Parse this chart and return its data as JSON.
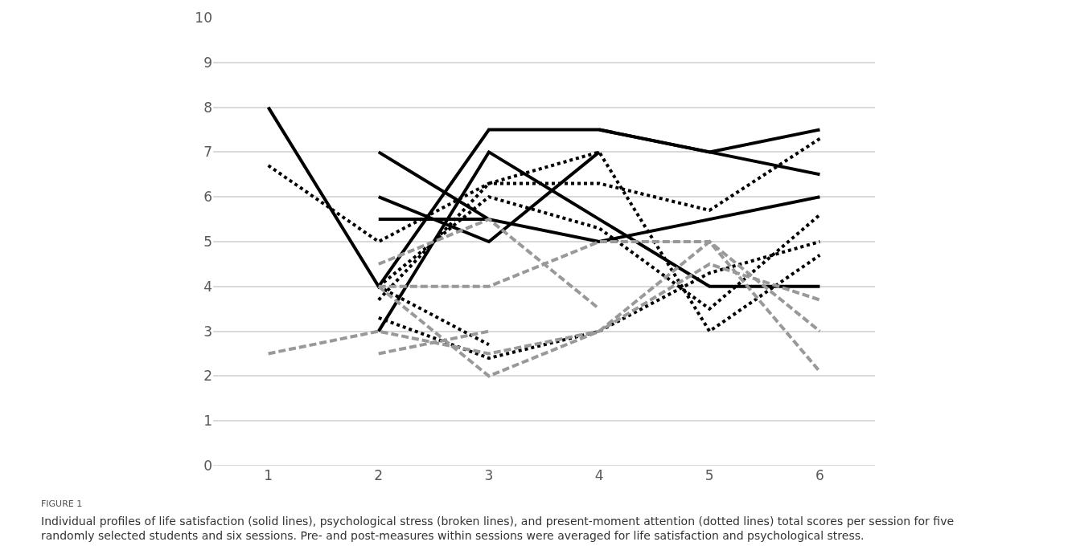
{
  "chart_data": {
    "type": "line",
    "categories": [
      "1",
      "2",
      "3",
      "4",
      "5",
      "6"
    ],
    "series": [
      {
        "color": "#000000",
        "line_style": "solid",
        "values": [
          8,
          4,
          7.5,
          7.5,
          7,
          7.5
        ]
      },
      {
        "color": "#000000",
        "line_style": "solid",
        "values": [
          null,
          3,
          7,
          5.5,
          4,
          4
        ]
      },
      {
        "color": "#000000",
        "line_style": "solid",
        "values": [
          null,
          7,
          5.5,
          5,
          5.5,
          6
        ]
      },
      {
        "color": "#000000",
        "line_style": "solid",
        "values": [
          null,
          6,
          5,
          7,
          null,
          null
        ]
      },
      {
        "color": "#000000",
        "line_style": "solid",
        "values": [
          null,
          5.5,
          5.5,
          null,
          null,
          null
        ]
      },
      {
        "color": "#000000",
        "line_style": "solid",
        "values": [
          null,
          null,
          null,
          7.5,
          7,
          6.5
        ]
      },
      {
        "color": "#000000",
        "line_style": "dotted",
        "values": [
          6.7,
          5,
          6.3,
          6.3,
          5.7,
          7.3
        ]
      },
      {
        "color": "#000000",
        "line_style": "dotted",
        "values": [
          null,
          3.7,
          6.3,
          7,
          3,
          4.7
        ]
      },
      {
        "color": "#000000",
        "line_style": "dotted",
        "values": [
          null,
          4,
          6,
          5.3,
          3.5,
          5.6
        ]
      },
      {
        "color": "#000000",
        "line_style": "dotted",
        "values": [
          null,
          3.3,
          2.4,
          3,
          4.3,
          5
        ]
      },
      {
        "color": "#000000",
        "line_style": "dotted",
        "values": [
          null,
          4,
          2.7,
          null,
          null,
          null
        ]
      },
      {
        "color": "#999999",
        "line_style": "dashed",
        "values": [
          2.5,
          3,
          2.5,
          3,
          4.5,
          3.7
        ]
      },
      {
        "color": "#999999",
        "line_style": "dashed",
        "values": [
          null,
          2.5,
          3,
          null,
          null,
          null
        ]
      },
      {
        "color": "#999999",
        "line_style": "dashed",
        "values": [
          null,
          4,
          4,
          5,
          5,
          3
        ]
      },
      {
        "color": "#999999",
        "line_style": "dashed",
        "values": [
          null,
          4.5,
          5.5,
          3.5,
          null,
          null
        ]
      },
      {
        "color": "#999999",
        "line_style": "dashed",
        "values": [
          null,
          4,
          2,
          3,
          5,
          2.1
        ]
      }
    ],
    "ylim": [
      0,
      10
    ],
    "yticks": [
      0,
      1,
      2,
      3,
      4,
      5,
      6,
      7,
      8,
      9,
      10
    ],
    "grid": "y",
    "annotations": [
      "FIGURE 1",
      "Individual profiles of life satisfaction (solid lines), psychological stress (broken lines), and present-moment attention (dotted lines) total scores per session for five randomly selected students and six sessions. Pre- and post-measures within sessions were averaged for life satisfaction and psychological stress."
    ]
  }
}
